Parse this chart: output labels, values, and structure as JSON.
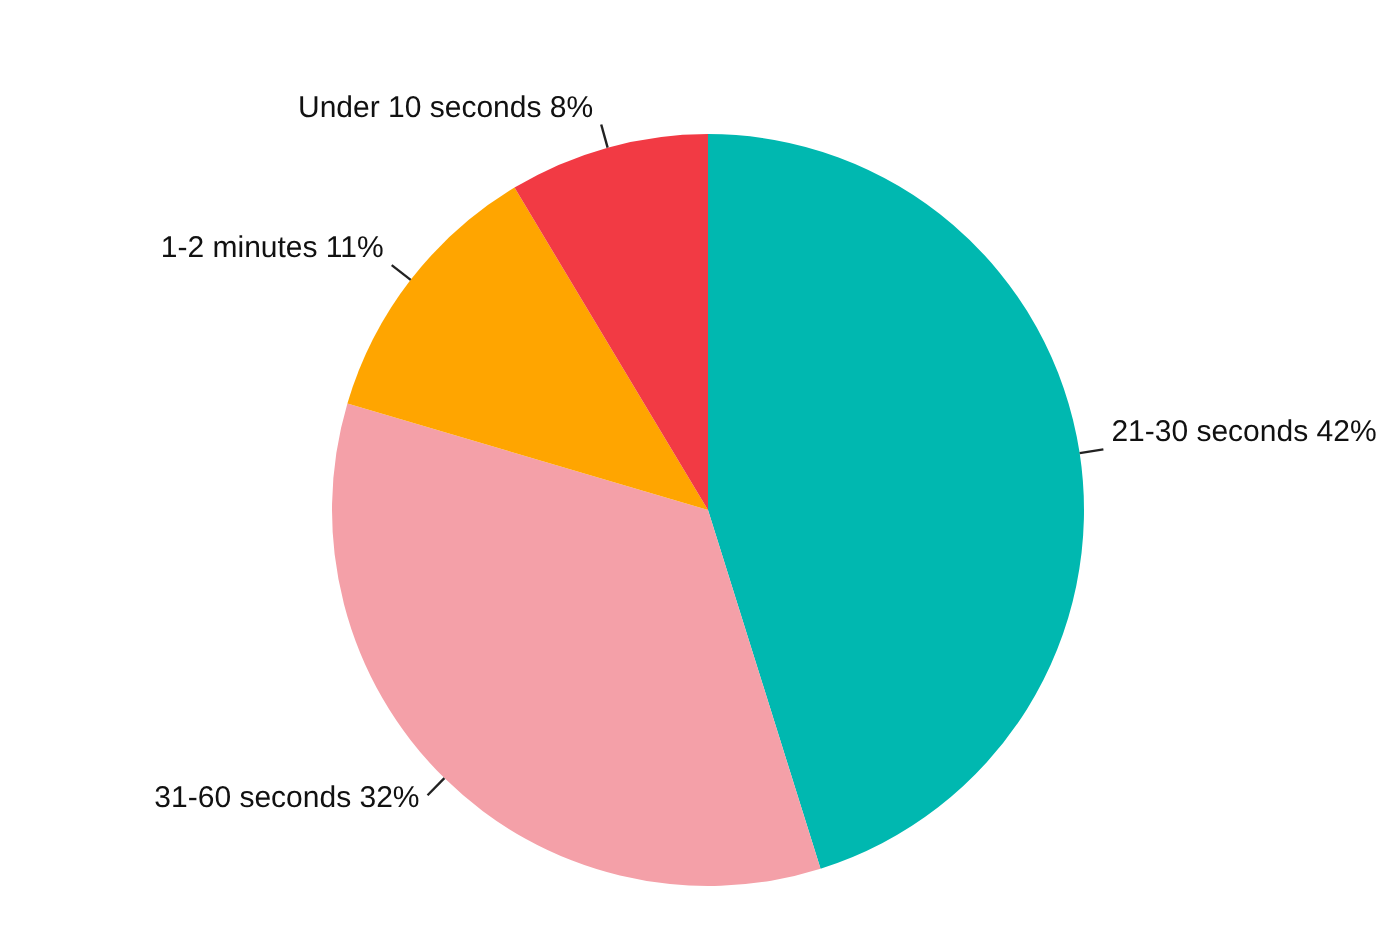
{
  "chart_data": {
    "type": "pie",
    "categories": [
      "21-30 seconds",
      "31-60 seconds",
      "1-2 minutes",
      "Under 10 seconds"
    ],
    "values": [
      42,
      32,
      11,
      8
    ],
    "value_labels": [
      "42%",
      "32%",
      "11%",
      "8%"
    ],
    "colors": [
      "#00b8b0",
      "#f4a0a8",
      "#ffa500",
      "#f23a44"
    ],
    "legend": false
  }
}
